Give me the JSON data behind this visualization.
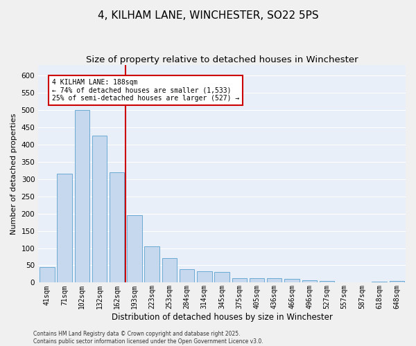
{
  "title": "4, KILHAM LANE, WINCHESTER, SO22 5PS",
  "subtitle": "Size of property relative to detached houses in Winchester",
  "xlabel": "Distribution of detached houses by size in Winchester",
  "ylabel": "Number of detached properties",
  "categories": [
    "41sqm",
    "71sqm",
    "102sqm",
    "132sqm",
    "162sqm",
    "193sqm",
    "223sqm",
    "253sqm",
    "284sqm",
    "314sqm",
    "345sqm",
    "375sqm",
    "405sqm",
    "436sqm",
    "466sqm",
    "496sqm",
    "527sqm",
    "557sqm",
    "587sqm",
    "618sqm",
    "648sqm"
  ],
  "values": [
    45,
    315,
    500,
    425,
    320,
    195,
    105,
    70,
    38,
    33,
    30,
    13,
    12,
    13,
    10,
    7,
    5,
    0,
    0,
    3,
    4
  ],
  "bar_color": "#c5d8ed",
  "bar_edge_color": "#6aaad4",
  "background_color": "#e8eff8",
  "grid_color": "#ffffff",
  "vline_color": "#cc0000",
  "annotation_text": "4 KILHAM LANE: 188sqm\n← 74% of detached houses are smaller (1,533)\n25% of semi-detached houses are larger (527) →",
  "annotation_box_color": "#cc0000",
  "footnote": "Contains HM Land Registry data © Crown copyright and database right 2025.\nContains public sector information licensed under the Open Government Licence v3.0.",
  "ylim": [
    0,
    630
  ],
  "yticks": [
    0,
    50,
    100,
    150,
    200,
    250,
    300,
    350,
    400,
    450,
    500,
    550,
    600
  ],
  "title_fontsize": 11,
  "subtitle_fontsize": 9.5,
  "tick_fontsize": 7,
  "ylabel_fontsize": 8,
  "xlabel_fontsize": 8.5,
  "footnote_fontsize": 5.5
}
